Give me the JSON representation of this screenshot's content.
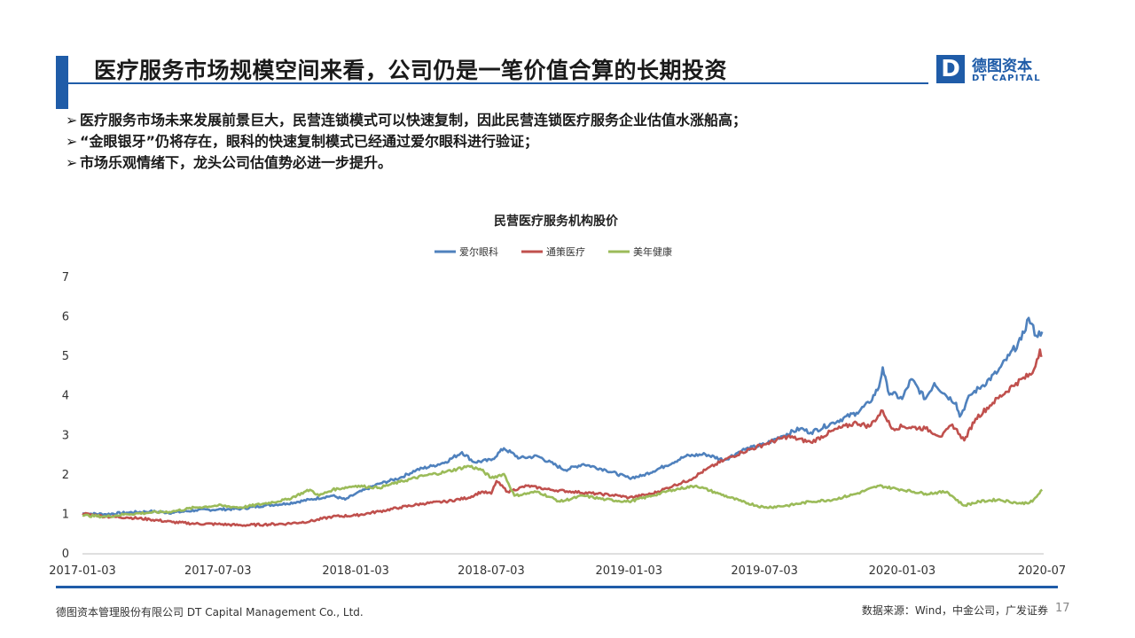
{
  "header": {
    "title": "医疗服务市场规模空间来看，公司仍是一笔价值合算的长期投资",
    "logo_cn": "德图资本",
    "logo_en": "DT CAPITAL",
    "logo_letter": "D"
  },
  "bullets": [
    "医疗服务市场未来发展前景巨大，民营连锁模式可以快速复制，因此民营连锁医疗服务企业估值水涨船高；",
    "“金眼银牙”仍将存在，眼科的快速复制模式已经通过爱尔眼科进行验证；",
    "市场乐观情绪下，龙头公司估值势必进一步提升。"
  ],
  "bullet_glyph": "➢",
  "chart_data": {
    "type": "line",
    "title": "民营医疗服务机构股价",
    "xlabel": "",
    "ylabel": "",
    "x_ticks": [
      "2017-01-03",
      "2017-07-03",
      "2018-01-03",
      "2018-07-03",
      "2019-01-03",
      "2019-07-03",
      "2020-01-03",
      "2020-07"
    ],
    "y_ticks": [
      "0",
      "1",
      "2",
      "3",
      "4",
      "5",
      "6",
      "7"
    ],
    "ylim": [
      0,
      7
    ],
    "xlim": [
      "2017-01-03",
      "2020-07-10"
    ],
    "legend_position": "top-center",
    "grid": false,
    "series": [
      {
        "name": "爱尔眼科",
        "color": "#4f81bd",
        "points": [
          [
            "2017-01-03",
            1.0
          ],
          [
            "2017-02-03",
            0.98
          ],
          [
            "2017-03-03",
            1.02
          ],
          [
            "2017-04-03",
            1.05
          ],
          [
            "2017-05-03",
            1.02
          ],
          [
            "2017-06-03",
            1.08
          ],
          [
            "2017-07-03",
            1.1
          ],
          [
            "2017-08-03",
            1.12
          ],
          [
            "2017-09-03",
            1.2
          ],
          [
            "2017-10-03",
            1.25
          ],
          [
            "2017-11-03",
            1.35
          ],
          [
            "2017-12-03",
            1.45
          ],
          [
            "2017-12-20",
            1.35
          ],
          [
            "2018-01-03",
            1.5
          ],
          [
            "2018-02-03",
            1.75
          ],
          [
            "2018-03-03",
            1.9
          ],
          [
            "2018-03-25",
            2.1
          ],
          [
            "2018-04-15",
            2.2
          ],
          [
            "2018-05-03",
            2.3
          ],
          [
            "2018-05-25",
            2.55
          ],
          [
            "2018-06-10",
            2.3
          ],
          [
            "2018-07-03",
            2.35
          ],
          [
            "2018-07-20",
            2.65
          ],
          [
            "2018-08-10",
            2.4
          ],
          [
            "2018-09-03",
            2.45
          ],
          [
            "2018-10-10",
            2.1
          ],
          [
            "2018-11-03",
            2.25
          ],
          [
            "2018-12-03",
            2.1
          ],
          [
            "2019-01-03",
            1.9
          ],
          [
            "2019-01-20",
            1.95
          ],
          [
            "2019-02-20",
            2.2
          ],
          [
            "2019-03-20",
            2.45
          ],
          [
            "2019-04-15",
            2.5
          ],
          [
            "2019-05-10",
            2.35
          ],
          [
            "2019-06-03",
            2.6
          ],
          [
            "2019-07-03",
            2.75
          ],
          [
            "2019-07-25",
            2.95
          ],
          [
            "2019-08-20",
            3.15
          ],
          [
            "2019-09-03",
            3.05
          ],
          [
            "2019-10-03",
            3.3
          ],
          [
            "2019-11-03",
            3.55
          ],
          [
            "2019-11-20",
            3.8
          ],
          [
            "2019-12-03",
            4.2
          ],
          [
            "2019-12-08",
            4.7
          ],
          [
            "2019-12-15",
            4.1
          ],
          [
            "2020-01-03",
            3.9
          ],
          [
            "2020-01-15",
            4.4
          ],
          [
            "2020-02-03",
            3.9
          ],
          [
            "2020-02-15",
            4.3
          ],
          [
            "2020-03-01",
            4.0
          ],
          [
            "2020-03-15",
            3.8
          ],
          [
            "2020-03-20",
            3.45
          ],
          [
            "2020-04-03",
            4.0
          ],
          [
            "2020-04-20",
            4.25
          ],
          [
            "2020-05-10",
            4.6
          ],
          [
            "2020-05-25",
            5.0
          ],
          [
            "2020-06-10",
            5.4
          ],
          [
            "2020-06-20",
            5.95
          ],
          [
            "2020-06-30",
            5.5
          ],
          [
            "2020-07-08",
            5.6
          ]
        ]
      },
      {
        "name": "通策医疗",
        "color": "#c0504d",
        "points": [
          [
            "2017-01-03",
            1.0
          ],
          [
            "2017-02-03",
            0.92
          ],
          [
            "2017-03-03",
            0.9
          ],
          [
            "2017-04-03",
            0.85
          ],
          [
            "2017-05-03",
            0.78
          ],
          [
            "2017-06-03",
            0.74
          ],
          [
            "2017-07-03",
            0.73
          ],
          [
            "2017-08-03",
            0.7
          ],
          [
            "2017-09-03",
            0.72
          ],
          [
            "2017-10-03",
            0.74
          ],
          [
            "2017-11-03",
            0.8
          ],
          [
            "2017-12-03",
            0.92
          ],
          [
            "2018-01-03",
            0.95
          ],
          [
            "2018-02-03",
            1.05
          ],
          [
            "2018-03-03",
            1.15
          ],
          [
            "2018-04-03",
            1.25
          ],
          [
            "2018-05-03",
            1.3
          ],
          [
            "2018-06-03",
            1.4
          ],
          [
            "2018-06-20",
            1.55
          ],
          [
            "2018-07-03",
            1.5
          ],
          [
            "2018-07-10",
            1.82
          ],
          [
            "2018-07-25",
            1.55
          ],
          [
            "2018-08-20",
            1.7
          ],
          [
            "2018-09-20",
            1.6
          ],
          [
            "2018-10-20",
            1.55
          ],
          [
            "2018-11-20",
            1.5
          ],
          [
            "2018-12-20",
            1.45
          ],
          [
            "2019-01-03",
            1.4
          ],
          [
            "2019-02-03",
            1.5
          ],
          [
            "2019-03-03",
            1.7
          ],
          [
            "2019-03-25",
            1.85
          ],
          [
            "2019-04-15",
            2.1
          ],
          [
            "2019-05-10",
            2.35
          ],
          [
            "2019-06-03",
            2.55
          ],
          [
            "2019-07-03",
            2.75
          ],
          [
            "2019-08-03",
            2.95
          ],
          [
            "2019-09-03",
            2.8
          ],
          [
            "2019-10-03",
            3.1
          ],
          [
            "2019-11-03",
            3.3
          ],
          [
            "2019-11-20",
            3.2
          ],
          [
            "2019-12-08",
            3.6
          ],
          [
            "2019-12-20",
            3.15
          ],
          [
            "2020-01-03",
            3.2
          ],
          [
            "2020-02-03",
            3.15
          ],
          [
            "2020-02-25",
            2.95
          ],
          [
            "2020-03-10",
            3.25
          ],
          [
            "2020-03-20",
            3.0
          ],
          [
            "2020-03-26",
            2.85
          ],
          [
            "2020-04-10",
            3.4
          ],
          [
            "2020-05-03",
            3.8
          ],
          [
            "2020-06-03",
            4.3
          ],
          [
            "2020-06-25",
            4.55
          ],
          [
            "2020-07-05",
            5.15
          ],
          [
            "2020-07-08",
            5.0
          ]
        ]
      },
      {
        "name": "美年健康",
        "color": "#9bbb59",
        "points": [
          [
            "2017-01-03",
            0.95
          ],
          [
            "2017-02-03",
            0.92
          ],
          [
            "2017-03-03",
            0.98
          ],
          [
            "2017-04-03",
            1.02
          ],
          [
            "2017-05-03",
            1.05
          ],
          [
            "2017-06-03",
            1.15
          ],
          [
            "2017-07-03",
            1.2
          ],
          [
            "2017-08-03",
            1.15
          ],
          [
            "2017-09-03",
            1.25
          ],
          [
            "2017-10-03",
            1.35
          ],
          [
            "2017-11-03",
            1.6
          ],
          [
            "2017-11-15",
            1.45
          ],
          [
            "2017-12-03",
            1.6
          ],
          [
            "2018-01-03",
            1.7
          ],
          [
            "2018-02-03",
            1.65
          ],
          [
            "2018-03-03",
            1.8
          ],
          [
            "2018-04-03",
            1.95
          ],
          [
            "2018-05-03",
            2.05
          ],
          [
            "2018-06-03",
            2.2
          ],
          [
            "2018-06-20",
            2.1
          ],
          [
            "2018-07-03",
            1.9
          ],
          [
            "2018-07-20",
            2.0
          ],
          [
            "2018-08-03",
            1.45
          ],
          [
            "2018-09-03",
            1.55
          ],
          [
            "2018-10-03",
            1.3
          ],
          [
            "2018-11-03",
            1.45
          ],
          [
            "2018-12-03",
            1.35
          ],
          [
            "2019-01-03",
            1.3
          ],
          [
            "2019-02-03",
            1.45
          ],
          [
            "2019-03-03",
            1.6
          ],
          [
            "2019-04-03",
            1.7
          ],
          [
            "2019-05-03",
            1.5
          ],
          [
            "2019-06-03",
            1.3
          ],
          [
            "2019-07-03",
            1.15
          ],
          [
            "2019-08-03",
            1.2
          ],
          [
            "2019-09-03",
            1.3
          ],
          [
            "2019-10-03",
            1.35
          ],
          [
            "2019-11-03",
            1.5
          ],
          [
            "2019-12-03",
            1.7
          ],
          [
            "2020-01-03",
            1.6
          ],
          [
            "2020-02-03",
            1.5
          ],
          [
            "2020-03-03",
            1.55
          ],
          [
            "2020-03-25",
            1.2
          ],
          [
            "2020-04-15",
            1.3
          ],
          [
            "2020-05-10",
            1.35
          ],
          [
            "2020-06-10",
            1.25
          ],
          [
            "2020-06-25",
            1.3
          ],
          [
            "2020-07-08",
            1.6
          ]
        ]
      }
    ]
  },
  "footer": {
    "company": "德图资本管理股份有限公司  DT Capital  Management  Co., Ltd.",
    "source": "数据来源：Wind，中金公司，广发证券",
    "page": "17"
  }
}
